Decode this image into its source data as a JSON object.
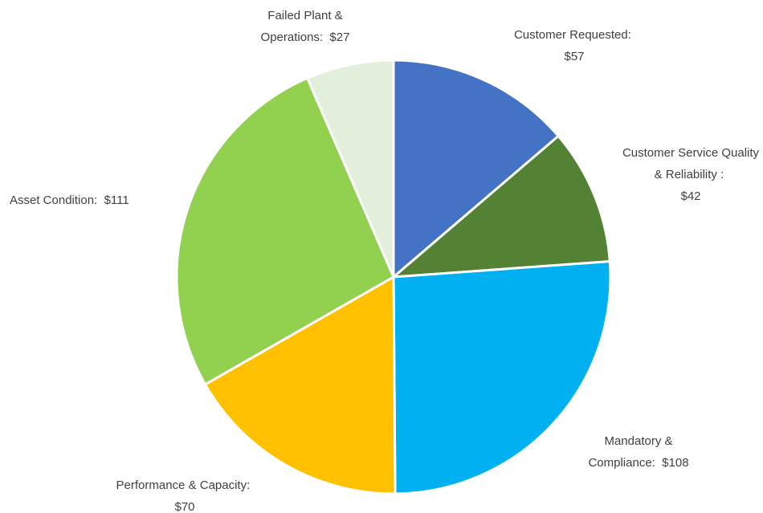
{
  "chart_data": {
    "type": "pie",
    "categories": [
      "Customer Requested:",
      "Customer Service Quality & Reliability :",
      "Mandatory & Compliance:",
      "Performance & Capacity:",
      "Asset Condition:",
      "Failed Plant & Operations:"
    ],
    "values": [
      57,
      42,
      108,
      70,
      111,
      27
    ],
    "value_labels": [
      "$57",
      "$42",
      "$108",
      "$70",
      "$111",
      "$27"
    ],
    "colors": [
      "#4472c4",
      "#548235",
      "#00b0f0",
      "#ffc000",
      "#92d050",
      "#e2efda"
    ]
  }
}
